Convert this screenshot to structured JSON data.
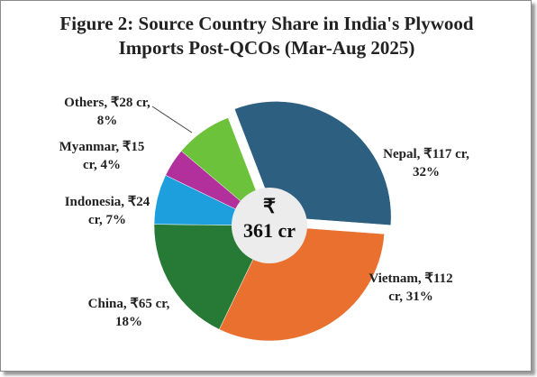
{
  "chart_data": {
    "type": "pie",
    "title": "Figure 2: Source Country Share in India's Plywood Imports Post-QCOs (Mar-Aug 2025)",
    "categories": [
      "Nepal",
      "Vietnam",
      "China",
      "Indonesia",
      "Myanmar",
      "Others"
    ],
    "values": [
      32,
      31,
      18,
      7,
      4,
      8
    ],
    "value_labels": [
      "Nepal, ₹117 cr, 32%",
      "Vietnam, ₹112 cr, 31%",
      "China,  ₹65 cr, 18%",
      "Indonesia, ₹24 cr, 7%",
      "Myanmar, ₹15 cr, 4%",
      "Others, ₹28 cr, 8%"
    ],
    "colors": [
      "#2d5f80",
      "#ea7030",
      "#267a36",
      "#1c9fdc",
      "#b2309c",
      "#6cc23a"
    ],
    "center_label": [
      "₹",
      "361 cr"
    ]
  }
}
